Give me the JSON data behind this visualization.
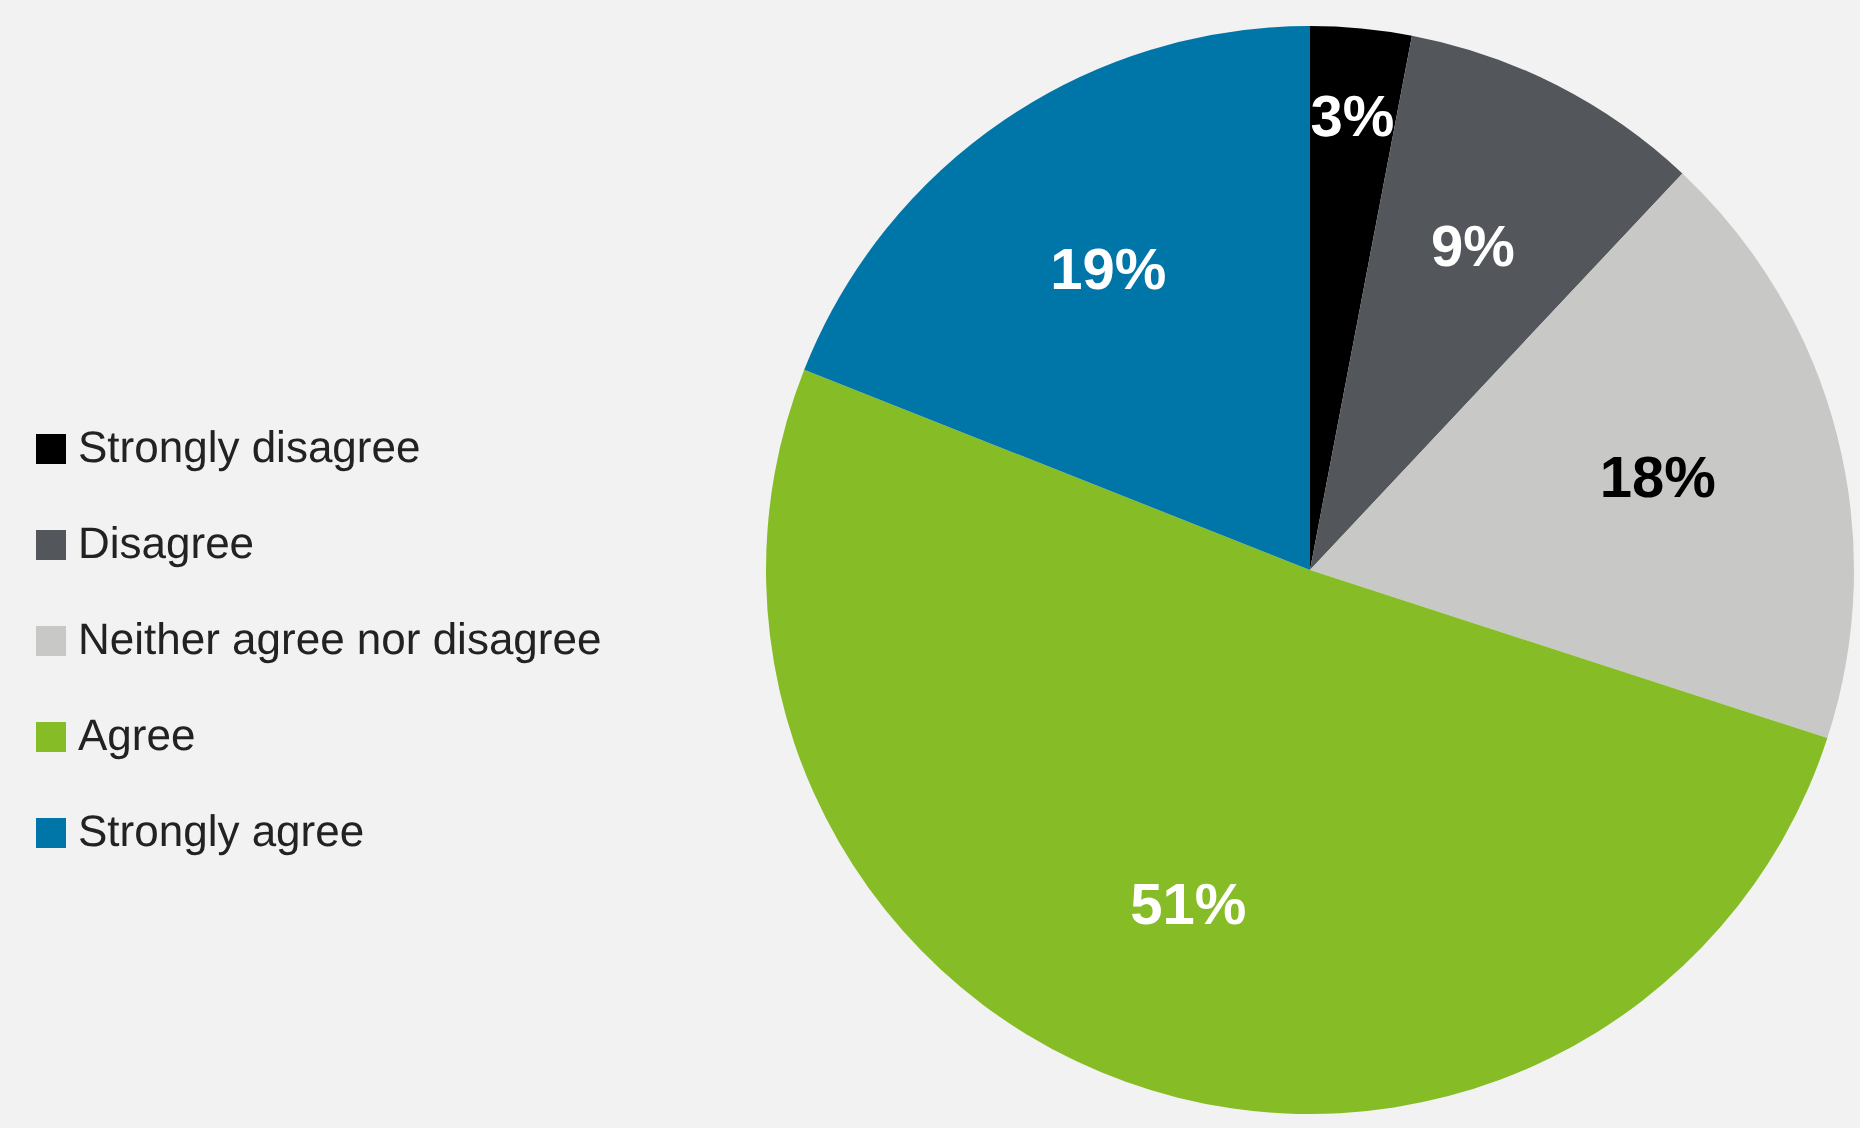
{
  "chart_data": {
    "type": "pie",
    "categories": [
      "Strongly disagree",
      "Disagree",
      "Neither agree nor disagree",
      "Agree",
      "Strongly agree"
    ],
    "values": [
      3,
      9,
      18,
      51,
      19
    ],
    "colors": [
      "#000000",
      "#53565a",
      "#c8c9c7",
      "#86bc25",
      "#0076a8"
    ],
    "value_labels": [
      "3%",
      "9%",
      "18%",
      "51%",
      "19%"
    ],
    "legend": "left"
  }
}
